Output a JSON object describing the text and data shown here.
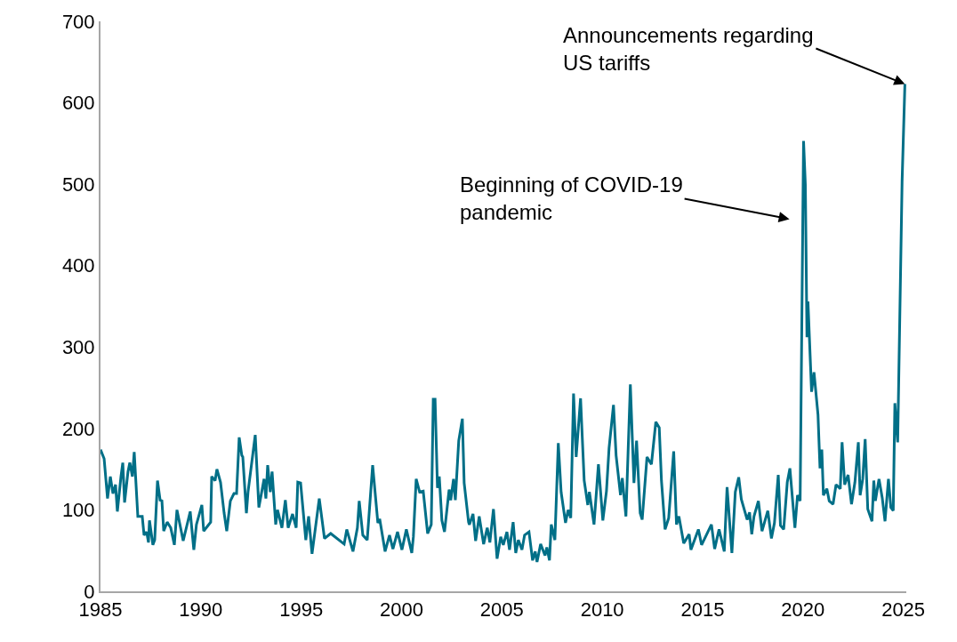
{
  "chart_data": {
    "type": "line",
    "xlim": [
      1985,
      2025.15
    ],
    "ylim": [
      0,
      700
    ],
    "xticks": [
      1985,
      1990,
      1995,
      2000,
      2005,
      2010,
      2015,
      2020,
      2025
    ],
    "yticks": [
      0,
      100,
      200,
      300,
      400,
      500,
      600,
      700
    ],
    "annotations": [
      "Beginning of COVID-19\npandemic",
      {
        "text": "Announcements regarding\nUS tariffs",
        "x": 2025.08,
        "y": 623
      }
    ],
    "series": [
      {
        "color": "#006f87",
        "x": [
          1985.0,
          1985.18,
          1985.35,
          1985.49,
          1985.62,
          1985.75,
          1985.84,
          1986.02,
          1986.11,
          1986.2,
          1986.37,
          1986.46,
          1986.59,
          1986.68,
          1986.86,
          1987.08,
          1987.17,
          1987.3,
          1987.39,
          1987.44,
          1987.61,
          1987.7,
          1987.84,
          1987.97,
          1988.06,
          1988.15,
          1988.32,
          1988.5,
          1988.68,
          1988.81,
          1988.99,
          1989.12,
          1989.47,
          1989.65,
          1989.78,
          1990.05,
          1990.14,
          1990.49,
          1990.54,
          1990.71,
          1990.8,
          1990.98,
          1991.16,
          1991.29,
          1991.47,
          1991.65,
          1991.78,
          1991.91,
          1992.04,
          1992.09,
          1992.27,
          1992.35,
          1992.71,
          1992.89,
          1993.15,
          1993.24,
          1993.33,
          1993.46,
          1993.55,
          1993.73,
          1993.82,
          1994.04,
          1994.21,
          1994.35,
          1994.57,
          1994.75,
          1994.83,
          1994.97,
          1995.23,
          1995.37,
          1995.54,
          1995.9,
          1996.16,
          1996.47,
          1997.14,
          1997.27,
          1997.58,
          1997.8,
          1997.89,
          1998.07,
          1998.29,
          1998.56,
          1998.82,
          1998.91,
          1999.18,
          1999.4,
          1999.57,
          1999.8,
          2000.02,
          2000.24,
          2000.51,
          2000.59,
          2000.73,
          2000.9,
          2001.08,
          2001.3,
          2001.48,
          2001.58,
          2001.67,
          2001.79,
          2001.88,
          2002.01,
          2002.14,
          2002.37,
          2002.45,
          2002.59,
          2002.68,
          2002.85,
          2003.03,
          2003.12,
          2003.34,
          2003.38,
          2003.56,
          2003.69,
          2003.87,
          2004.09,
          2004.27,
          2004.4,
          2004.58,
          2004.76,
          2004.94,
          2005.07,
          2005.25,
          2005.38,
          2005.56,
          2005.69,
          2005.82,
          2006.0,
          2006.13,
          2006.35,
          2006.53,
          2006.66,
          2006.75,
          2006.93,
          2007.15,
          2007.24,
          2007.37,
          2007.46,
          2007.64,
          2007.81,
          2007.95,
          2008.17,
          2008.3,
          2008.43,
          2008.57,
          2008.7,
          2008.92,
          2009.1,
          2009.28,
          2009.36,
          2009.59,
          2009.81,
          2010.03,
          2010.21,
          2010.34,
          2010.56,
          2010.69,
          2010.91,
          2011.0,
          2011.18,
          2011.4,
          2011.58,
          2011.71,
          2011.89,
          2011.99,
          2012.23,
          2012.45,
          2012.67,
          2012.84,
          2012.95,
          2013.13,
          2013.31,
          2013.56,
          2013.7,
          2013.82,
          2014.06,
          2014.33,
          2014.42,
          2014.79,
          2014.95,
          2015.44,
          2015.6,
          2015.82,
          2016.08,
          2016.22,
          2016.46,
          2016.63,
          2016.8,
          2016.93,
          2017.22,
          2017.34,
          2017.45,
          2017.56,
          2017.78,
          2017.96,
          2018.25,
          2018.43,
          2018.58,
          2018.77,
          2018.88,
          2019.04,
          2019.22,
          2019.35,
          2019.6,
          2019.73,
          2019.86,
          2020.03,
          2020.12,
          2020.2,
          2020.25,
          2020.43,
          2020.55,
          2020.75,
          2020.85,
          2020.94,
          2021.02,
          2021.19,
          2021.31,
          2021.5,
          2021.65,
          2021.86,
          2021.95,
          2022.08,
          2022.25,
          2022.42,
          2022.59,
          2022.76,
          2022.85,
          2022.98,
          2023.1,
          2023.23,
          2023.44,
          2023.53,
          2023.61,
          2023.79,
          2023.95,
          2024.09,
          2024.26,
          2024.38,
          2024.5,
          2024.58,
          2024.72,
          2024.94,
          2025.08
        ],
        "values": [
          174,
          163,
          114,
          141,
          120,
          131,
          98,
          141,
          158,
          109,
          147,
          158,
          141,
          171,
          92,
          92,
          69,
          73,
          60,
          87,
          57,
          63,
          136,
          112,
          111,
          74,
          85,
          78,
          57,
          100,
          78,
          62,
          98,
          51,
          82,
          106,
          74,
          85,
          141,
          136,
          150,
          134,
          96,
          74,
          111,
          120,
          120,
          189,
          167,
          165,
          96,
          122,
          192,
          103,
          138,
          114,
          155,
          122,
          147,
          82,
          100,
          78,
          112,
          78,
          95,
          78,
          134,
          133,
          63,
          92,
          46,
          114,
          65,
          71,
          58,
          76,
          49,
          78,
          111,
          69,
          63,
          155,
          84,
          89,
          49,
          69,
          52,
          73,
          51,
          76,
          47,
          67,
          138,
          122,
          123,
          71,
          82,
          236,
          236,
          127,
          141,
          87,
          73,
          125,
          112,
          138,
          112,
          185,
          212,
          133,
          85,
          82,
          95,
          62,
          92,
          58,
          78,
          60,
          101,
          40,
          67,
          57,
          73,
          51,
          85,
          47,
          63,
          51,
          69,
          73,
          38,
          49,
          36,
          58,
          44,
          54,
          38,
          82,
          63,
          182,
          122,
          84,
          100,
          90,
          243,
          165,
          237,
          136,
          106,
          122,
          82,
          156,
          87,
          123,
          176,
          229,
          167,
          118,
          139,
          92,
          254,
          133,
          185,
          96,
          88,
          165,
          156,
          208,
          201,
          136,
          76,
          90,
          172,
          82,
          92,
          59,
          70,
          51,
          76,
          57,
          82,
          52,
          76,
          49,
          128,
          47,
          122,
          140,
          113,
          88,
          97,
          70,
          92,
          111,
          74,
          99,
          65,
          84,
          143,
          81,
          76,
          134,
          151,
          78,
          118,
          111,
          553,
          499,
          312,
          356,
          245,
          269,
          217,
          151,
          174,
          118,
          126,
          111,
          107,
          131,
          126,
          183,
          131,
          143,
          107,
          134,
          183,
          118,
          138,
          187,
          101,
          86,
          136,
          111,
          138,
          115,
          86,
          138,
          103,
          99,
          231,
          183,
          503,
          623
        ]
      }
    ]
  }
}
